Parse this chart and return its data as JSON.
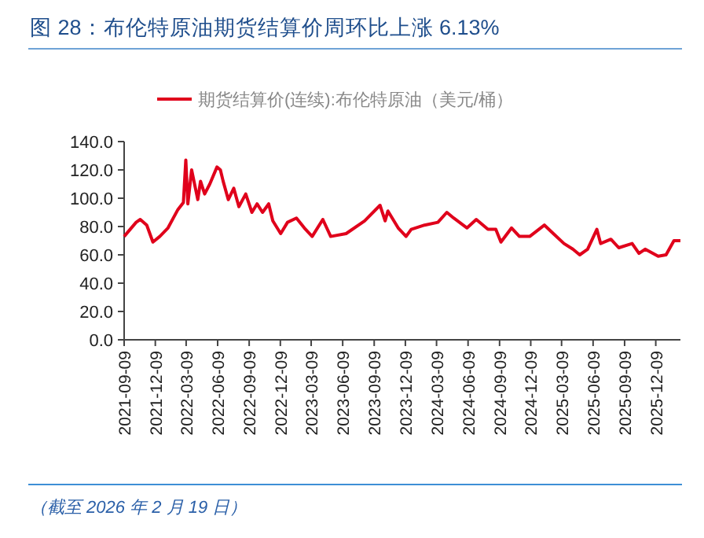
{
  "chart_data": {
    "type": "line",
    "title": "图 28：布伦特原油期货结算价周环比上涨 6.13%",
    "series": [
      {
        "name": "期货结算价(连续):布伦特原油（美元/桶）",
        "color": "#e0001b",
        "x": [
          "2021-09-09",
          "2021-10-14",
          "2021-10-26",
          "2021-11-14",
          "2021-12-02",
          "2021-12-22",
          "2022-01-15",
          "2022-02-13",
          "2022-03-01",
          "2022-03-08",
          "2022-03-14",
          "2022-03-25",
          "2022-04-12",
          "2022-04-20",
          "2022-05-02",
          "2022-05-17",
          "2022-06-07",
          "2022-06-17",
          "2022-06-25",
          "2022-07-10",
          "2022-07-26",
          "2022-08-10",
          "2022-08-30",
          "2022-09-17",
          "2022-10-02",
          "2022-10-18",
          "2022-11-05",
          "2022-11-17",
          "2022-12-10",
          "2022-12-30",
          "2023-01-25",
          "2023-02-17",
          "2023-03-12",
          "2023-04-12",
          "2023-05-05",
          "2023-06-19",
          "2023-08-12",
          "2023-09-26",
          "2023-10-11",
          "2023-10-19",
          "2023-11-18",
          "2023-12-11",
          "2023-12-26",
          "2024-02-03",
          "2024-03-13",
          "2024-04-08",
          "2024-04-28",
          "2024-06-06",
          "2024-07-03",
          "2024-08-06",
          "2024-08-29",
          "2024-09-13",
          "2024-10-14",
          "2024-11-06",
          "2024-12-06",
          "2025-01-18",
          "2025-02-13",
          "2025-03-16",
          "2025-04-11",
          "2025-05-01",
          "2025-05-24",
          "2025-06-20",
          "2025-07-01",
          "2025-07-31",
          "2025-08-23",
          "2025-10-01",
          "2025-10-21",
          "2025-11-08",
          "2025-12-16",
          "2026-01-08",
          "2026-01-31",
          "2026-02-19"
        ],
        "values": [
          73,
          83,
          85,
          81,
          69,
          73,
          79,
          92,
          97,
          127,
          96,
          120,
          99,
          112,
          103,
          110,
          122,
          120,
          112,
          99,
          107,
          94,
          103,
          90,
          96,
          90,
          96,
          84,
          75,
          83,
          86,
          79,
          73,
          85,
          73,
          75,
          84,
          95,
          84,
          91,
          79,
          73,
          78,
          81,
          83,
          90,
          86,
          79,
          85,
          78,
          78,
          69,
          79,
          73,
          73,
          81,
          75,
          68,
          64,
          60,
          64,
          78,
          68,
          71,
          65,
          68,
          61,
          64,
          59,
          60,
          70,
          70
        ]
      }
    ],
    "xlim": [
      "2021-09-09",
      "2026-02-19"
    ],
    "xticks": [
      "2021-09-09",
      "2021-12-09",
      "2022-03-09",
      "2022-06-09",
      "2022-09-09",
      "2022-12-09",
      "2023-03-09",
      "2023-06-09",
      "2023-09-09",
      "2023-12-09",
      "2024-03-09",
      "2024-06-09",
      "2024-09-09",
      "2024-12-09",
      "2025-03-09",
      "2025-06-09",
      "2025-09-09",
      "2025-12-09"
    ],
    "ylim": [
      0,
      140
    ],
    "yticks": [
      {
        "value": 0,
        "label": "0.0"
      },
      {
        "value": 20,
        "label": "20.0"
      },
      {
        "value": 40,
        "label": "40.0"
      },
      {
        "value": 60,
        "label": "60.0"
      },
      {
        "value": 80,
        "label": "80.0"
      },
      {
        "value": 100,
        "label": "100.0"
      },
      {
        "value": 120,
        "label": "120.0"
      },
      {
        "value": 140,
        "label": "140.0"
      }
    ],
    "legend": "top",
    "annotations": [
      "（截至 2026 年 2 月 19 日）"
    ]
  }
}
